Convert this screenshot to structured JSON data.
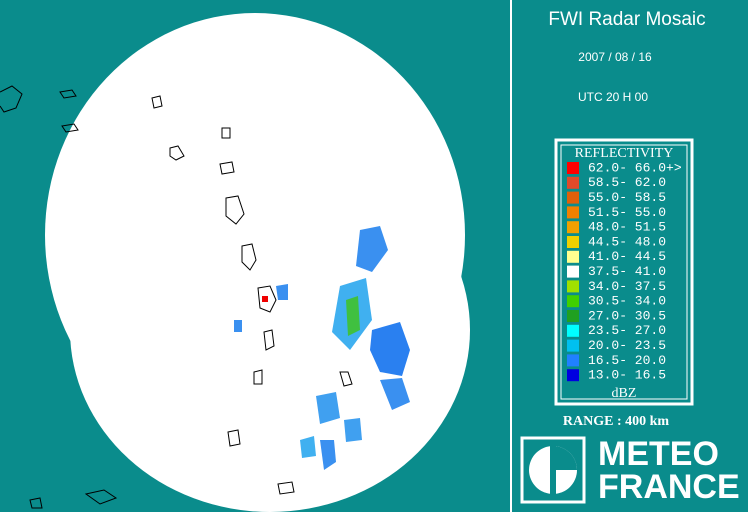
{
  "header": {
    "title": "FWI Radar Mosaic",
    "date": "2007 / 08 / 16",
    "time": "UTC 20 H 00"
  },
  "legend": {
    "title": "REFLECTIVITY",
    "unit": "dBZ",
    "items": [
      {
        "label": "62.0- 66.0+>",
        "color": "#ff0000"
      },
      {
        "label": "58.5- 62.0",
        "color": "#e04a2a"
      },
      {
        "label": "55.0- 58.5",
        "color": "#e0600a"
      },
      {
        "label": "51.5- 55.0",
        "color": "#f08000"
      },
      {
        "label": "48.0- 51.5",
        "color": "#f0a000"
      },
      {
        "label": "44.5- 48.0",
        "color": "#f0d000"
      },
      {
        "label": "41.0- 44.5",
        "color": "#ffff90"
      },
      {
        "label": "37.5- 41.0",
        "color": "#ffffff"
      },
      {
        "label": "34.0- 37.5",
        "color": "#a0e000"
      },
      {
        "label": "30.5- 34.0",
        "color": "#40d000"
      },
      {
        "label": "27.0- 30.5",
        "color": "#20a020"
      },
      {
        "label": "23.5- 27.0",
        "color": "#00ffff"
      },
      {
        "label": "20.0- 23.5",
        "color": "#00c0f0"
      },
      {
        "label": "16.5- 20.0",
        "color": "#2080ff"
      },
      {
        "label": "13.0- 16.5",
        "color": "#0000e0"
      }
    ]
  },
  "range": "RANGE : 400 km",
  "logo": {
    "line1": "METEO",
    "line2": "FRANCE"
  }
}
